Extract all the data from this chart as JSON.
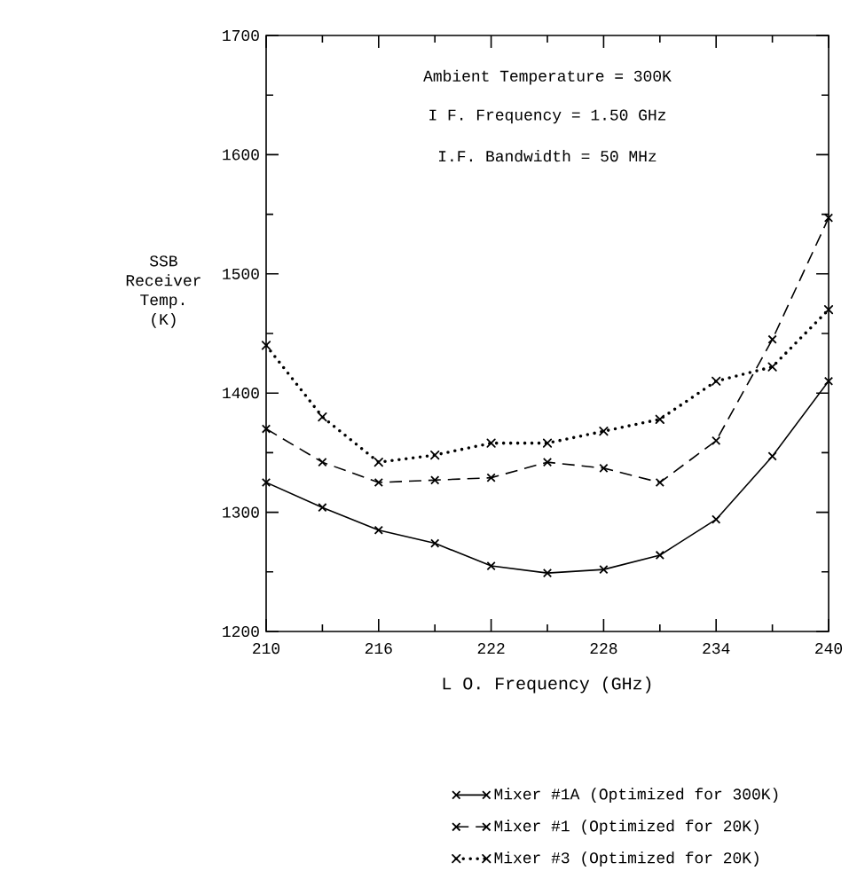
{
  "chart_data": {
    "type": "line",
    "xlabel": "L O. Frequency (GHz)",
    "ylabel": "SSB Receiver Temp. (K)",
    "annotations": [
      "Ambient Temperature = 300K",
      "I F. Frequency = 1.50 GHz",
      "I.F. Bandwidth = 50 MHz"
    ],
    "x": [
      210,
      213,
      216,
      219,
      222,
      225,
      228,
      231,
      234,
      237,
      240
    ],
    "series": [
      {
        "name": "Mixer #1A (Optimized for 300K)",
        "color": "#000000",
        "line_style": "solid",
        "values": [
          1325,
          1304,
          1285,
          1274,
          1255,
          1249,
          1252,
          1264,
          1294,
          1347,
          1410
        ]
      },
      {
        "name": "Mixer #1 (Optimized for 20K)",
        "color": "#000000",
        "line_style": "dashed",
        "values": [
          1370,
          1342,
          1325,
          1327,
          1329,
          1342,
          1337,
          1325,
          1360,
          1445,
          1547
        ]
      },
      {
        "name": "Mixer #3 (Optimized for 20K)",
        "color": "#000000",
        "line_style": "dotted",
        "values": [
          1440,
          1380,
          1342,
          1348,
          1358,
          1358,
          1368,
          1378,
          1410,
          1422,
          1470
        ]
      }
    ],
    "xlim": [
      210,
      240
    ],
    "ylim": [
      1200,
      1700
    ],
    "xticks": [
      210,
      216,
      222,
      228,
      234,
      240
    ],
    "yticks": [
      1200,
      1300,
      1400,
      1500,
      1600,
      1700
    ],
    "marker": "cross",
    "grid": false,
    "legend": "bottom"
  }
}
